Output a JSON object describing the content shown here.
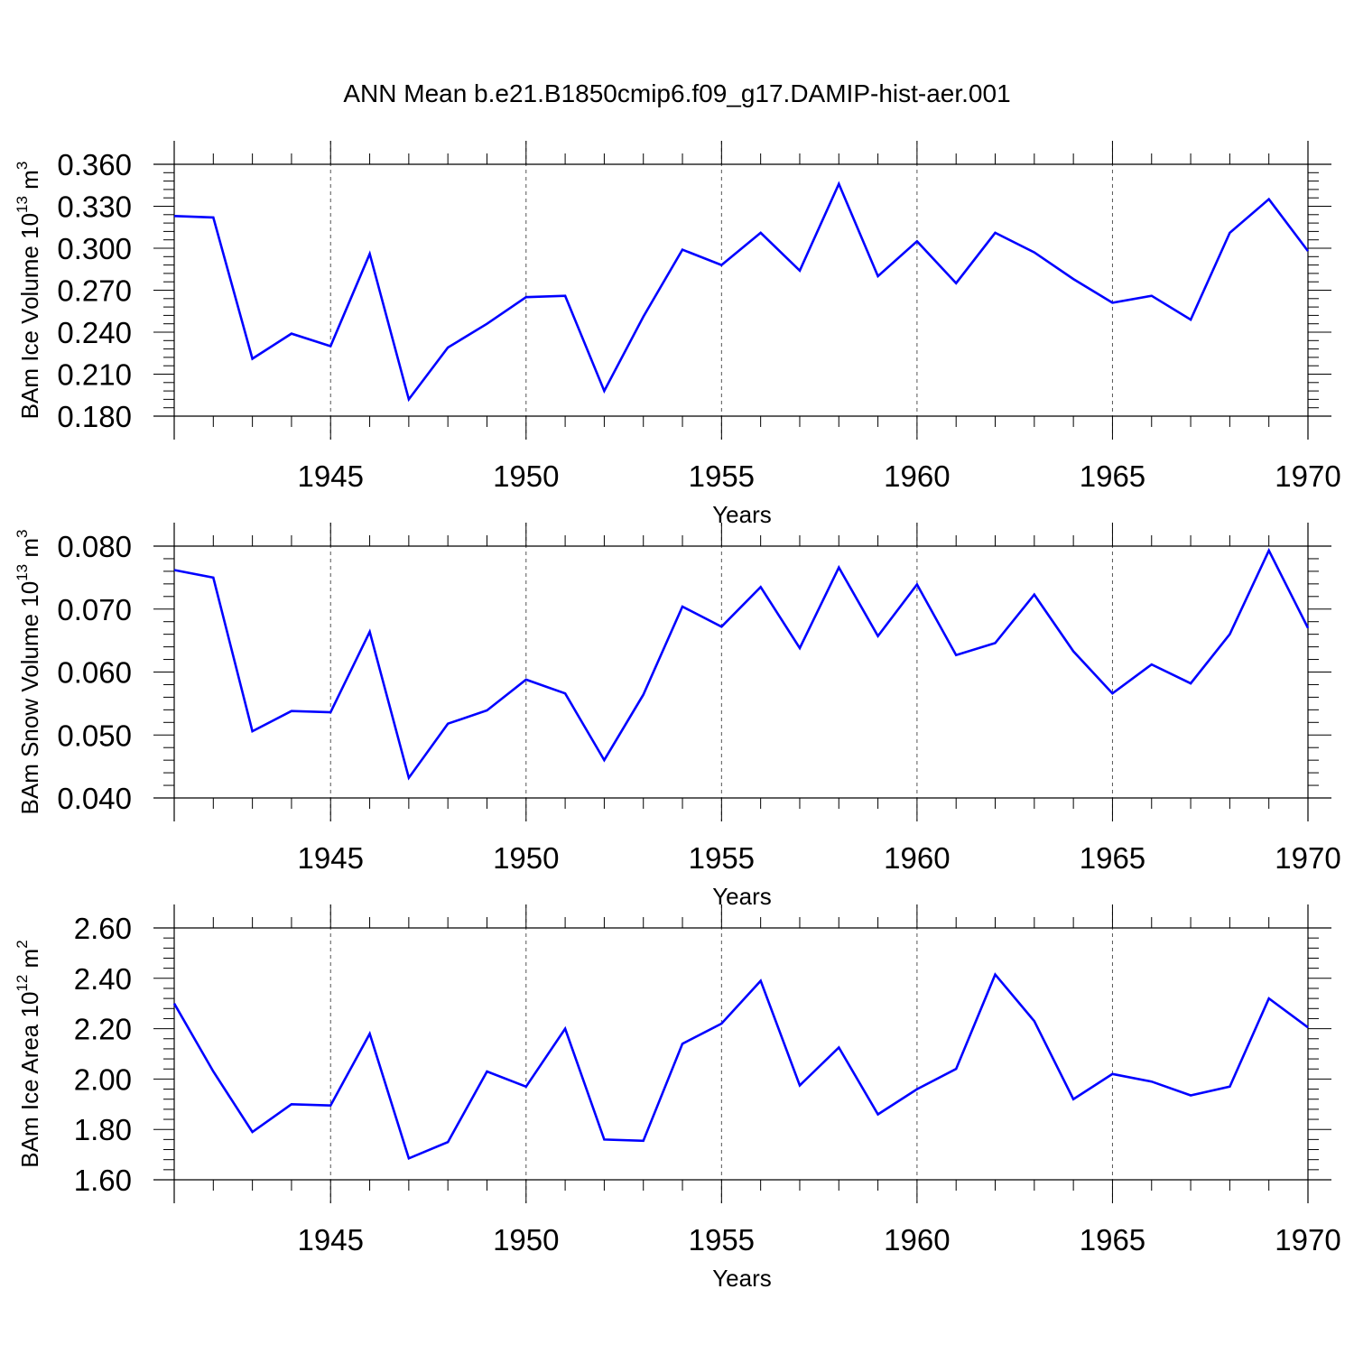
{
  "title": "ANN Mean b.e21.B1850cmip6.f09_g17.DAMIP-hist-aer.001",
  "colors": {
    "line": "#0000ff",
    "axis": "#000000",
    "grid": "#555555"
  },
  "chart_data": [
    {
      "type": "line",
      "xlabel": "Years",
      "ylabel": {
        "main": "BAm Ice Volume 10",
        "exp": "13",
        "unit": " m",
        "unit_exp": "3"
      },
      "xlim": [
        1941,
        1970
      ],
      "ylim": [
        0.18,
        0.36
      ],
      "xticks": [
        "1945",
        "1950",
        "1955",
        "1960",
        "1965",
        "1970"
      ],
      "yticks": [
        "0.180",
        "0.210",
        "0.240",
        "0.270",
        "0.300",
        "0.330",
        "0.360"
      ],
      "grid": "dashed vertical lines at labeled years",
      "x": [
        1941,
        1942,
        1943,
        1944,
        1945,
        1946,
        1947,
        1948,
        1949,
        1950,
        1951,
        1952,
        1953,
        1954,
        1955,
        1956,
        1957,
        1958,
        1959,
        1960,
        1961,
        1962,
        1963,
        1964,
        1965,
        1966,
        1967,
        1968,
        1969,
        1970
      ],
      "values": [
        0.323,
        0.322,
        0.221,
        0.239,
        0.23,
        0.296,
        0.192,
        0.229,
        0.246,
        0.265,
        0.266,
        0.198,
        0.251,
        0.299,
        0.288,
        0.311,
        0.284,
        0.346,
        0.28,
        0.305,
        0.275,
        0.311,
        0.297,
        0.278,
        0.261,
        0.266,
        0.249,
        0.311,
        0.335,
        0.298
      ]
    },
    {
      "type": "line",
      "xlabel": "Years",
      "ylabel": {
        "main": "BAm Snow Volume 10",
        "exp": "13",
        "unit": " m",
        "unit_exp": "3"
      },
      "xlim": [
        1941,
        1970
      ],
      "ylim": [
        0.04,
        0.08
      ],
      "xticks": [
        "1945",
        "1950",
        "1955",
        "1960",
        "1965",
        "1970"
      ],
      "yticks": [
        "0.040",
        "0.050",
        "0.060",
        "0.070",
        "0.080"
      ],
      "grid": "dashed vertical lines at labeled years",
      "x": [
        1941,
        1942,
        1943,
        1944,
        1945,
        1946,
        1947,
        1948,
        1949,
        1950,
        1951,
        1952,
        1953,
        1954,
        1955,
        1956,
        1957,
        1958,
        1959,
        1960,
        1961,
        1962,
        1963,
        1964,
        1965,
        1966,
        1967,
        1968,
        1969,
        1970
      ],
      "values": [
        0.0762,
        0.075,
        0.0506,
        0.0538,
        0.0536,
        0.0664,
        0.0432,
        0.0518,
        0.0539,
        0.0588,
        0.0566,
        0.046,
        0.0564,
        0.0704,
        0.0672,
        0.0735,
        0.0638,
        0.0766,
        0.0657,
        0.0739,
        0.0627,
        0.0646,
        0.0723,
        0.0633,
        0.0566,
        0.0612,
        0.0582,
        0.066,
        0.0793,
        0.067
      ]
    },
    {
      "type": "line",
      "xlabel": "Years",
      "ylabel": {
        "main": "BAm Ice Area 10",
        "exp": "12",
        "unit": " m",
        "unit_exp": "2"
      },
      "xlim": [
        1941,
        1970
      ],
      "ylim": [
        1.6,
        2.6
      ],
      "xticks": [
        "1945",
        "1950",
        "1955",
        "1960",
        "1965",
        "1970"
      ],
      "yticks": [
        "1.60",
        "1.80",
        "2.00",
        "2.20",
        "2.40",
        "2.60"
      ],
      "grid": "dashed vertical lines at labeled years",
      "x": [
        1941,
        1942,
        1943,
        1944,
        1945,
        1946,
        1947,
        1948,
        1949,
        1950,
        1951,
        1952,
        1953,
        1954,
        1955,
        1956,
        1957,
        1958,
        1959,
        1960,
        1961,
        1962,
        1963,
        1964,
        1965,
        1966,
        1967,
        1968,
        1969,
        1970
      ],
      "values": [
        2.3,
        2.03,
        1.79,
        1.9,
        1.895,
        2.18,
        1.685,
        1.75,
        2.03,
        1.97,
        2.2,
        1.76,
        1.755,
        2.14,
        2.22,
        2.39,
        1.975,
        2.125,
        1.86,
        1.96,
        2.04,
        2.415,
        2.23,
        1.92,
        2.02,
        1.99,
        1.935,
        1.97,
        2.32,
        2.205
      ]
    }
  ]
}
